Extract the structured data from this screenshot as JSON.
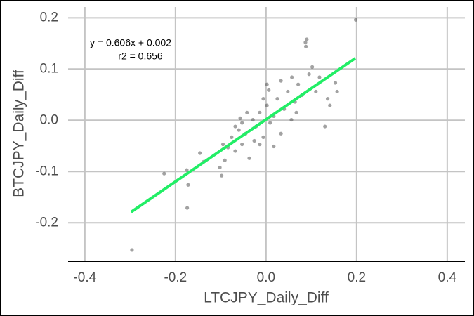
{
  "chart_data": {
    "type": "scatter",
    "x_label": "LTCJPY_Daily_Diff",
    "y_label": "BTCJPY_Daily_Diff",
    "annotations": [
      "y = 0.606x + 0.002",
      "r2 = 0.656"
    ],
    "xlim": [
      -0.437,
      0.439
    ],
    "ylim": [
      -0.275,
      0.221
    ],
    "xticks": [
      -0.4,
      -0.2,
      {
        "value": 0,
        "label": "0.0"
      },
      0.2,
      0.4
    ],
    "yticks": [
      -0.2,
      -0.1,
      {
        "value": 0,
        "label": "0.0"
      },
      0.1,
      0.2
    ],
    "grid": true,
    "series": [
      {
        "color": "#555555",
        "x": [
          -0.296,
          -0.225,
          -0.175,
          -0.172,
          -0.174,
          -0.146,
          -0.138,
          -0.102,
          -0.098,
          -0.095,
          -0.084,
          -0.076,
          -0.068,
          -0.06,
          -0.053,
          -0.045,
          -0.037,
          -0.053,
          -0.029,
          -0.022,
          -0.014,
          -0.006,
          0.002,
          0.009,
          0.017,
          0.025,
          0.033,
          0.04,
          0.048,
          0.056,
          0.064,
          0.071,
          0.079,
          0.087,
          0.09,
          0.088,
          0.095,
          0.102,
          0.11,
          0.118,
          0.13,
          0.136,
          0.141,
          0.153,
          0.157,
          0.198,
          0.002,
          0.006,
          -0.042,
          -0.026,
          -0.068,
          -0.057,
          -0.006,
          0.033,
          0.057,
          0.067,
          -0.014,
          0.017,
          -0.091
        ],
        "values": [
          -0.253,
          -0.104,
          -0.097,
          -0.126,
          -0.171,
          -0.064,
          -0.081,
          -0.092,
          -0.108,
          -0.047,
          -0.053,
          -0.033,
          -0.06,
          -0.019,
          -0.047,
          -0.026,
          -0.074,
          -0.005,
          0.001,
          -0.012,
          0.015,
          -0.033,
          0.029,
          -0.005,
          0.008,
          0.042,
          -0.026,
          0.022,
          0.056,
          0.001,
          0.036,
          0.07,
          0.049,
          0.152,
          0.158,
          0.144,
          0.09,
          0.104,
          0.056,
          0.084,
          -0.012,
          0.042,
          0.029,
          0.073,
          0.056,
          0.196,
          0.07,
          0.059,
          0.015,
          -0.04,
          -0.012,
          0.004,
          0.042,
          0.077,
          0.084,
          0.015,
          -0.047,
          -0.051,
          -0.078
        ]
      }
    ],
    "fit": {
      "color": "#22ee66",
      "x": [
        -0.298,
        0.197
      ],
      "values": [
        -0.179,
        0.121
      ]
    }
  }
}
